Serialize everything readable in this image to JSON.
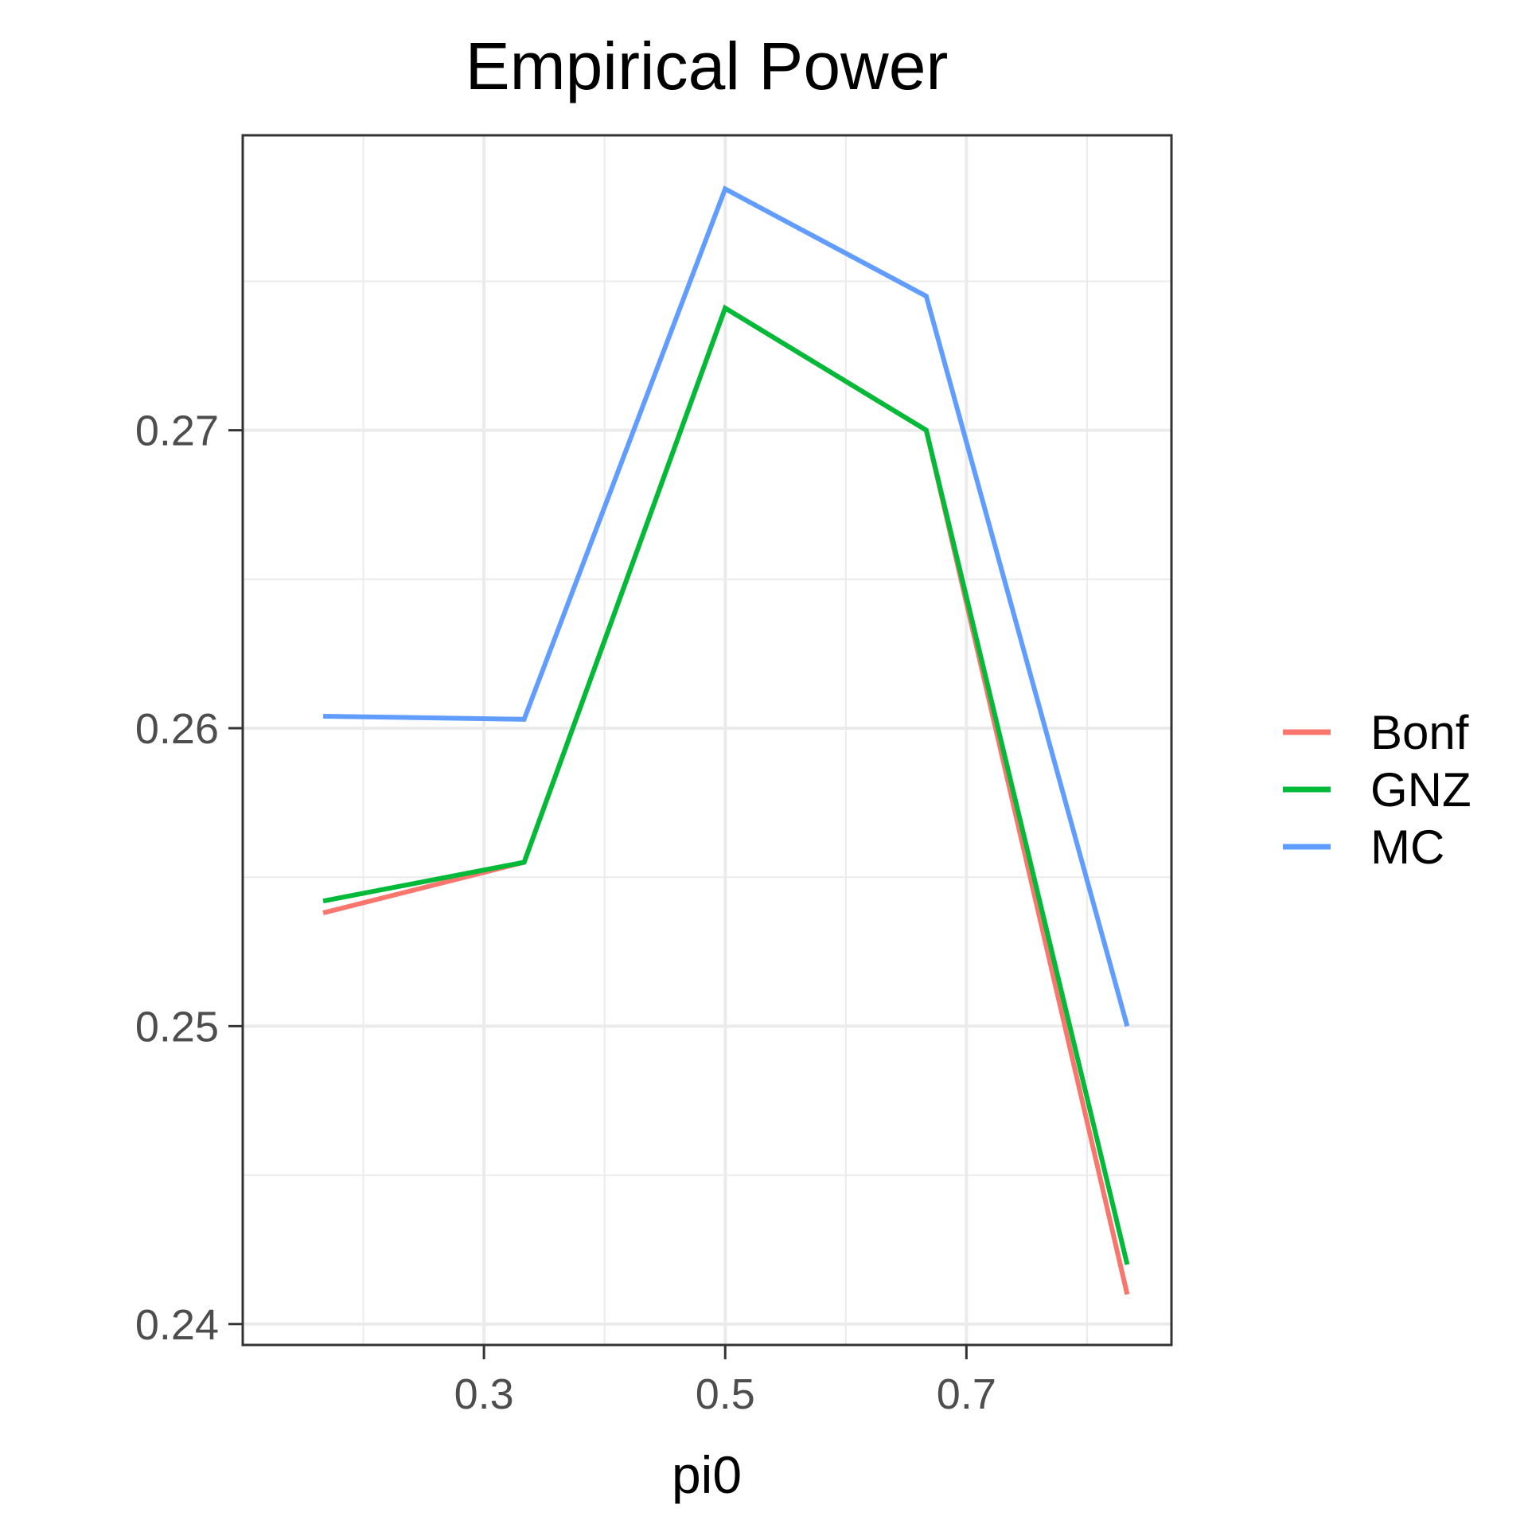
{
  "chart_data": {
    "type": "line",
    "title": "Empirical Power",
    "xlabel": "pi0",
    "ylabel": "",
    "x": [
      0.1667,
      0.3333,
      0.5,
      0.6667,
      0.8333
    ],
    "xlim": [
      0.1,
      0.87
    ],
    "ylim": [
      0.2393,
      0.2799
    ],
    "x_ticks": [
      0.3,
      0.5,
      0.7
    ],
    "x_tick_labels": [
      "0.3",
      "0.5",
      "0.7"
    ],
    "x_minor": [
      0.2,
      0.4,
      0.6,
      0.8
    ],
    "y_ticks": [
      0.24,
      0.25,
      0.26,
      0.27
    ],
    "y_tick_labels": [
      "0.24",
      "0.25",
      "0.26",
      "0.27"
    ],
    "y_minor": [
      0.245,
      0.255,
      0.265,
      0.275
    ],
    "grid": true,
    "legend_position": "right",
    "series": [
      {
        "name": "Bonf",
        "color": "#F8766D",
        "values": [
          0.2538,
          0.2555,
          0.2741,
          0.27,
          0.241
        ]
      },
      {
        "name": "GNZ",
        "color": "#00BA38",
        "values": [
          0.2542,
          0.2555,
          0.2741,
          0.27,
          0.242
        ]
      },
      {
        "name": "MC",
        "color": "#619CFF",
        "values": [
          0.2604,
          0.2603,
          0.2781,
          0.2745,
          0.25
        ]
      }
    ]
  }
}
